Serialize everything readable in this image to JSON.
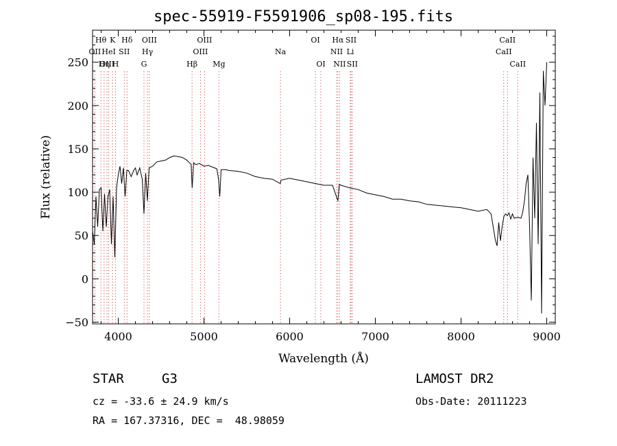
{
  "chart_data": {
    "type": "line",
    "title": "spec-55919-F5591906_sp08-195.fits",
    "xlabel": "Wavelength (Å)",
    "ylabel": "Flux (relative)",
    "xlim": [
      3700,
      9100
    ],
    "ylim": [
      -52,
      287
    ],
    "grid": false,
    "x_ticks": [
      4000,
      5000,
      6000,
      7000,
      8000,
      9000
    ],
    "y_ticks": [
      -50,
      0,
      50,
      100,
      150,
      200,
      250
    ],
    "series": [
      {
        "x": [
          3700,
          3720,
          3740,
          3760,
          3780,
          3800,
          3820,
          3840,
          3860,
          3880,
          3900,
          3920,
          3940,
          3960,
          3980,
          4000,
          4020,
          4040,
          4060,
          4080,
          4100,
          4120,
          4150,
          4180,
          4200,
          4220,
          4250,
          4280,
          4300,
          4320,
          4340,
          4360,
          4400,
          4450,
          4500,
          4550,
          4600,
          4650,
          4700,
          4750,
          4800,
          4850,
          4862,
          4880,
          4900,
          4950,
          5000,
          5050,
          5100,
          5150,
          5170,
          5185,
          5200,
          5250,
          5300,
          5400,
          5500,
          5600,
          5700,
          5800,
          5890,
          5900,
          6000,
          6100,
          6200,
          6300,
          6400,
          6500,
          6563,
          6580,
          6600,
          6700,
          6800,
          6900,
          7000,
          7100,
          7200,
          7300,
          7400,
          7500,
          7600,
          7700,
          7800,
          7900,
          8000,
          8100,
          8200,
          8300,
          8350,
          8400,
          8420,
          8440,
          8460,
          8480,
          8500,
          8520,
          8540,
          8560,
          8580,
          8600,
          8620,
          8660,
          8700,
          8720,
          8740,
          8760,
          8780,
          8800,
          8820,
          8840,
          8860,
          8880,
          8900,
          8920,
          8940,
          8960,
          8980,
          9000
        ],
        "values": [
          55,
          40,
          95,
          60,
          103,
          105,
          55,
          98,
          60,
          95,
          103,
          40,
          95,
          25,
          105,
          120,
          130,
          110,
          128,
          95,
          125,
          125,
          118,
          125,
          128,
          120,
          128,
          115,
          75,
          122,
          90,
          128,
          130,
          135,
          136,
          137,
          140,
          142,
          141,
          140,
          137,
          132,
          105,
          134,
          132,
          133,
          130,
          131,
          129,
          127,
          115,
          95,
          126,
          126,
          125,
          124,
          122,
          118,
          116,
          115,
          110,
          114,
          116,
          114,
          112,
          110,
          108,
          108,
          90,
          109,
          108,
          105,
          103,
          99,
          97,
          95,
          92,
          92,
          90,
          89,
          86,
          85,
          84,
          83,
          82,
          80,
          78,
          80,
          75,
          45,
          38,
          65,
          44,
          60,
          72,
          75,
          73,
          76,
          69,
          75,
          70,
          71,
          70,
          77,
          90,
          110,
          120,
          60,
          -25,
          140,
          70,
          180,
          40,
          215,
          -40,
          240,
          200,
          250
        ]
      }
    ],
    "line_markers": [
      {
        "name": "Hθ",
        "x": 3797,
        "row": 1
      },
      {
        "name": "OII",
        "x": 3727,
        "row": 2
      },
      {
        "name": "OIII",
        "x": 3869,
        "row": 3
      },
      {
        "name": "K",
        "x": 3934,
        "row": 1
      },
      {
        "name": "HeI",
        "x": 3889,
        "row": 2
      },
      {
        "name": "Hη",
        "x": 3835,
        "row": 3
      },
      {
        "name": "SII",
        "x": 4070,
        "row": 2
      },
      {
        "name": "H",
        "x": 3968,
        "row": 3
      },
      {
        "name": "Hδ",
        "x": 4102,
        "row": 1
      },
      {
        "name": "OIII",
        "x": 4363,
        "row": 1
      },
      {
        "name": "Hγ",
        "x": 4341,
        "row": 2
      },
      {
        "name": "G",
        "x": 4300,
        "row": 3
      },
      {
        "name": "Hβ",
        "x": 4861,
        "row": 3
      },
      {
        "name": "OIII",
        "x": 5007,
        "row": 1
      },
      {
        "name": "OIII",
        "x": 4959,
        "row": 2
      },
      {
        "name": "Mg",
        "x": 5175,
        "row": 3
      },
      {
        "name": "Na",
        "x": 5893,
        "row": 2
      },
      {
        "name": "OI",
        "x": 6300,
        "row": 1
      },
      {
        "name": "OI",
        "x": 6364,
        "row": 3
      },
      {
        "name": "Hα",
        "x": 6563,
        "row": 1
      },
      {
        "name": "SII",
        "x": 6716,
        "row": 1
      },
      {
        "name": "NII",
        "x": 6548,
        "row": 2
      },
      {
        "name": "Li",
        "x": 6708,
        "row": 2
      },
      {
        "name": "NII",
        "x": 6583,
        "row": 3
      },
      {
        "name": "SII",
        "x": 6731,
        "row": 3
      },
      {
        "name": "CaII",
        "x": 8542,
        "row": 1
      },
      {
        "name": "CaII",
        "x": 8498,
        "row": 2
      },
      {
        "name": "CaII",
        "x": 8662,
        "row": 3
      }
    ]
  },
  "info": {
    "class": "STAR",
    "subclass": "G3",
    "survey": "LAMOST DR2",
    "velocity": "cz = -33.6 ± 24.9 km/s",
    "obs_date": "Obs-Date: 20111223",
    "coords": "RA = 167.37316, DEC =  48.98059"
  }
}
